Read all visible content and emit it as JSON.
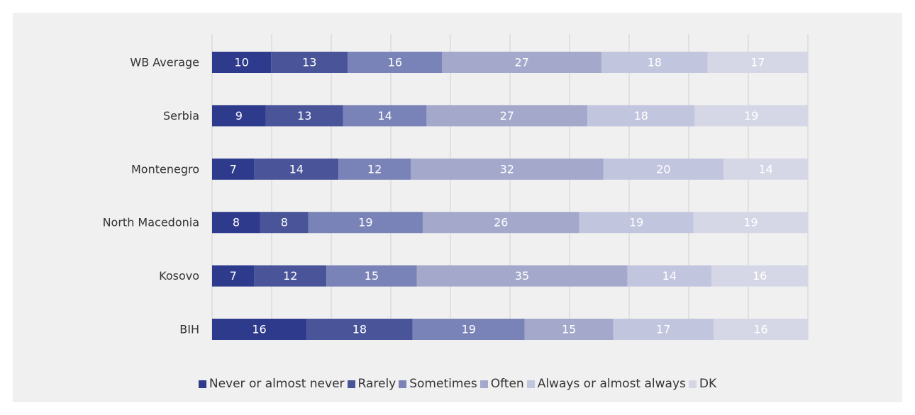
{
  "chart_data": {
    "type": "bar",
    "orientation": "horizontal",
    "stacked": true,
    "categories": [
      "WB Average",
      "Serbia",
      "Montenegro",
      "North Macedonia",
      "Kosovo",
      "BIH"
    ],
    "series": [
      {
        "name": "Never or almost never",
        "color": "#2e3a8c",
        "values": [
          10,
          9,
          7,
          8,
          7,
          16
        ]
      },
      {
        "name": "Rarely",
        "color": "#4a5499",
        "values": [
          13,
          13,
          14,
          8,
          12,
          18
        ]
      },
      {
        "name": "Sometimes",
        "color": "#7a83b8",
        "values": [
          16,
          14,
          12,
          19,
          15,
          19
        ]
      },
      {
        "name": "Often",
        "color": "#a4a9cc",
        "values": [
          27,
          27,
          32,
          26,
          35,
          15
        ]
      },
      {
        "name": "Always or almost always",
        "color": "#c2c5de",
        "values": [
          18,
          18,
          20,
          19,
          14,
          17
        ]
      },
      {
        "name": "DK",
        "color": "#d6d7e6",
        "values": [
          17,
          19,
          14,
          19,
          16,
          16
        ]
      }
    ],
    "xlim": [
      0,
      100
    ],
    "grid": true,
    "legend_position": "bottom"
  }
}
